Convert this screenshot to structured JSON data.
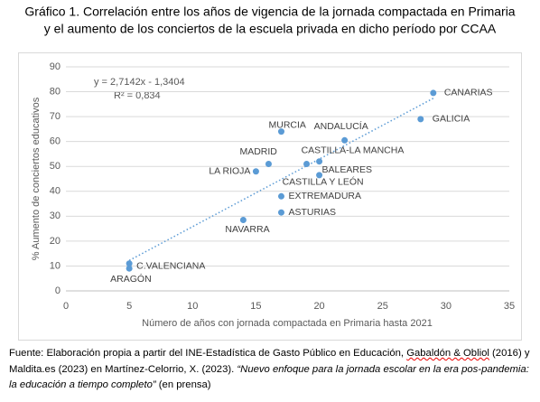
{
  "chart_data": {
    "type": "scatter",
    "title": [
      "Gráfico 1. Correlación entre los años de vigencia de la jornada compactada en Primaria",
      "y el aumento de los conciertos de la escuela privada en dicho período por CCAA"
    ],
    "x_label": "Número de años con jornada compactada en Primaria hasta 2021",
    "y_label": "% Aumento de conciertos educativos",
    "labels": [
      "CANARIAS",
      "GALICIA",
      "MURCIA",
      "ANDALUCÍA",
      "MADRID",
      "CASTILLA-LA MANCHA",
      "BALEARES",
      "CASTILLA Y LEÓN",
      "LA RIOJA",
      "EXTREMADURA",
      "ASTURIAS",
      "NAVARRA",
      "C.VALENCIANA",
      "ARAGÓN"
    ],
    "x": [
      29,
      28,
      17,
      22,
      16,
      20,
      19,
      20,
      15,
      17,
      17,
      14,
      5,
      5
    ],
    "values": [
      79.5,
      69,
      64,
      60.5,
      51,
      52,
      51,
      46.5,
      48,
      38,
      31.5,
      28.5,
      11,
      9
    ],
    "color": "#5b9bd5",
    "xlim": [
      0,
      35
    ],
    "xticks": [
      0,
      5,
      10,
      15,
      20,
      25,
      30,
      35
    ],
    "ylim": [
      0,
      90
    ],
    "yticks": [
      0,
      10,
      20,
      30,
      40,
      50,
      60,
      70,
      80,
      90
    ],
    "grid": true,
    "trendline": {
      "equation": "y = 2,7142x - 1,3404",
      "r2": "R² = 0,834",
      "slope": 2.7142,
      "intercept": -1.3404
    }
  },
  "footer": {
    "part1": "Fuente: Elaboración propia a partir del INE-Estadística de Gasto Público en Educación, ",
    "underlined": "Gabaldón & Obliol",
    "part2": " (2016) y Maldita.es (2023) en Martínez-Celorrio, X. (2023). ",
    "italic": "“Nuevo enfoque para la jornada escolar en la era pos-pandemia: la educación a tiempo completo”",
    "part3": " (en prensa)"
  }
}
